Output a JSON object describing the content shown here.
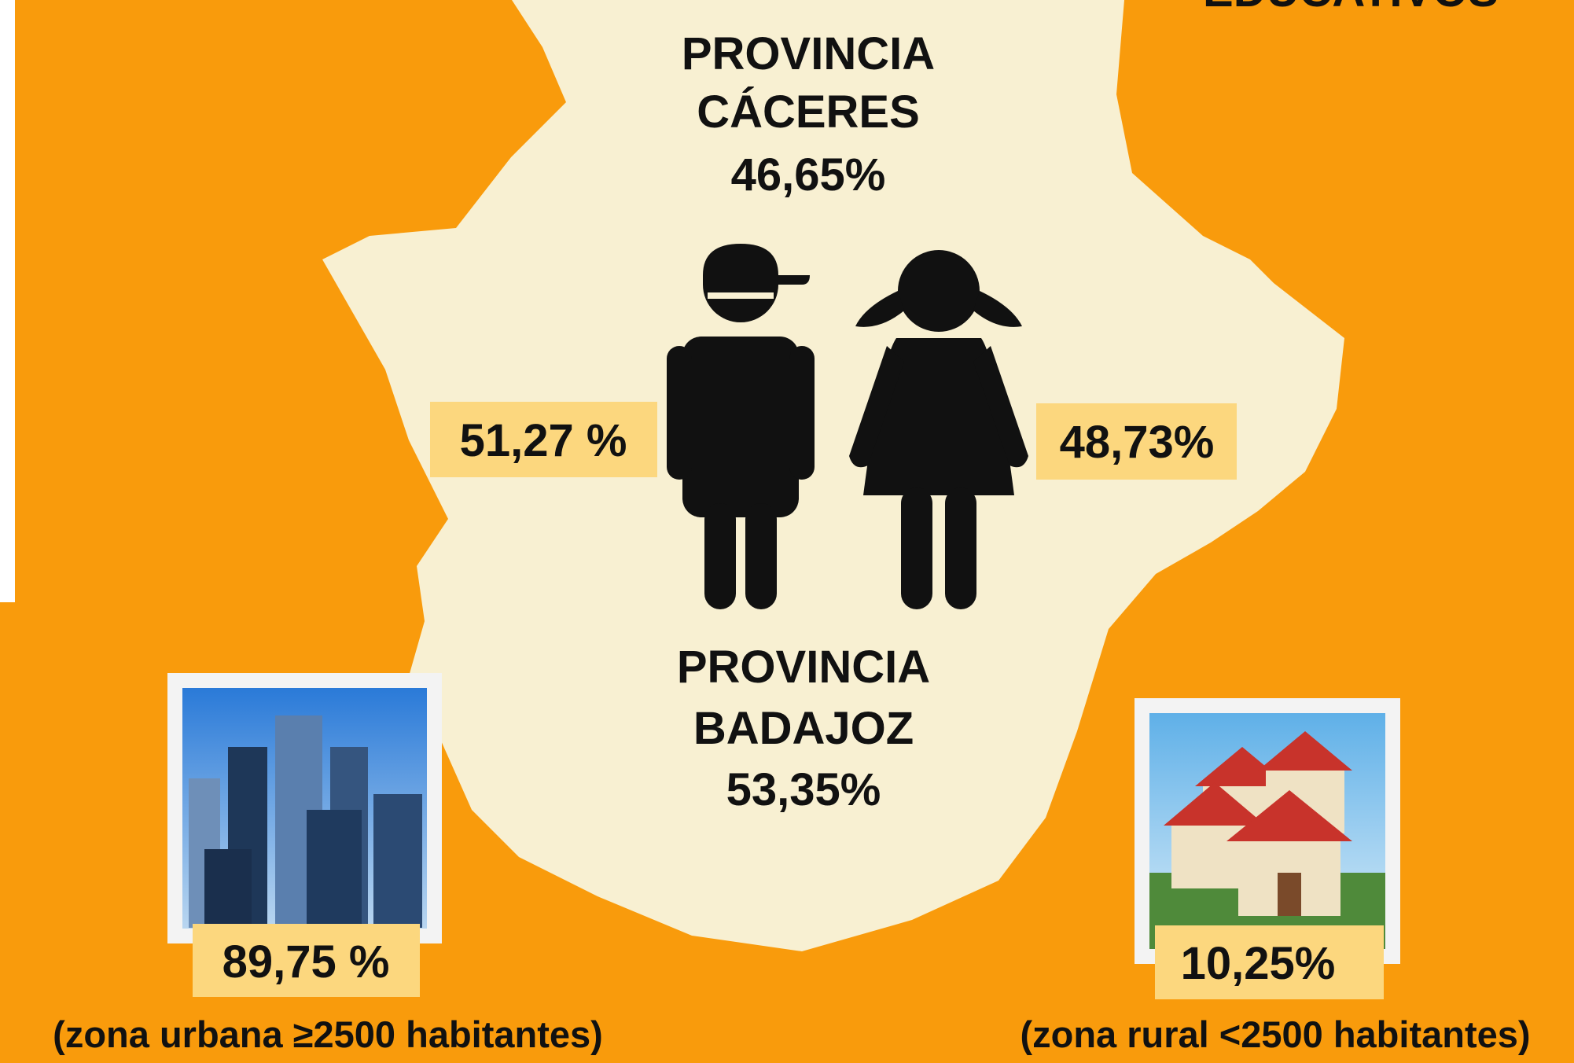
{
  "header": {
    "title": "EDUCATIVOS"
  },
  "caceres": {
    "line1": "PROVINCIA",
    "line2": "CÁCERES",
    "value": "46,65%"
  },
  "badajoz": {
    "line1": "PROVINCIA",
    "line2": "BADAJOZ",
    "value": "53,35%"
  },
  "boys": {
    "value": "51,27 %"
  },
  "girls": {
    "value": "48,73%"
  },
  "urban": {
    "value": "89,75 %",
    "caption": "(zona urbana ≥2500 habitantes)"
  },
  "rural": {
    "value": "10,25%",
    "caption": "(zona rural <2500 habitantes)"
  }
}
